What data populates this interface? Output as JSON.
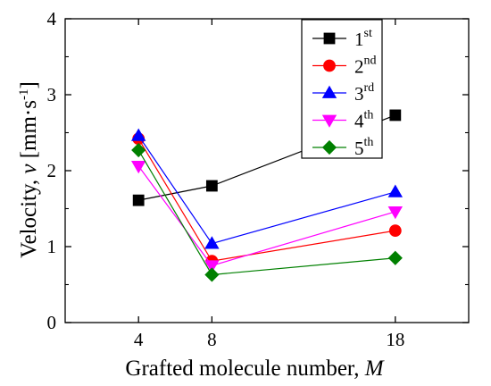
{
  "chart_data": {
    "type": "line",
    "x": [
      4,
      8,
      18
    ],
    "x_tick_labels": [
      "4",
      "8",
      "18"
    ],
    "y_tick_labels": [
      "0",
      "1",
      "2",
      "3",
      "4"
    ],
    "xlim": [
      0,
      22
    ],
    "ylim": [
      0,
      4
    ],
    "xlabel_text": "Grafted molecule number, ",
    "xlabel_var": "M",
    "ylabel_text": "Velocity, ",
    "ylabel_var": "v",
    "ylabel_unit_open": " [mm·s",
    "ylabel_unit_exp": "-1",
    "ylabel_unit_close": "]",
    "legend_position": "top-right",
    "grid": false,
    "series": [
      {
        "num": "1",
        "sup": "st",
        "values": [
          1.61,
          1.8,
          2.73
        ],
        "color": "#000000",
        "marker": "square"
      },
      {
        "num": "2",
        "sup": "nd",
        "values": [
          2.42,
          0.81,
          1.21
        ],
        "color": "#ff0000",
        "marker": "circle"
      },
      {
        "num": "3",
        "sup": "rd",
        "values": [
          2.46,
          1.04,
          1.72
        ],
        "color": "#0000ff",
        "marker": "triangle-up"
      },
      {
        "num": "4",
        "sup": "th",
        "values": [
          2.06,
          0.75,
          1.46
        ],
        "color": "#ff00ff",
        "marker": "triangle-down"
      },
      {
        "num": "5",
        "sup": "th",
        "values": [
          2.27,
          0.63,
          0.85
        ],
        "color": "#008000",
        "marker": "diamond"
      }
    ]
  }
}
